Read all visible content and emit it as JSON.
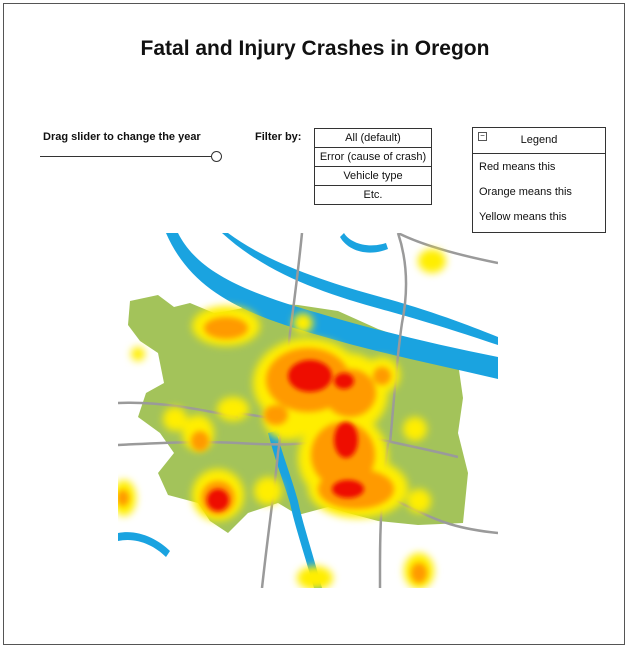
{
  "title": "Fatal and Injury Crashes in Oregon",
  "slider": {
    "label": "Drag slider to change the year"
  },
  "filter": {
    "label": "Filter by:",
    "options": [
      "All (default)",
      "Error (cause of crash)",
      "Vehicle type",
      "Etc."
    ]
  },
  "legend": {
    "title": "Legend",
    "toggle": "−",
    "items": [
      "Red means this",
      "Orange means this",
      "Yellow means this"
    ]
  },
  "colors": {
    "water": "#1aa3e0",
    "urban": "#a3c35a",
    "roads": "#9a9a9a",
    "heat_low": "#ffee00",
    "heat_mid": "#ff9a00",
    "heat_high": "#ee1100"
  }
}
